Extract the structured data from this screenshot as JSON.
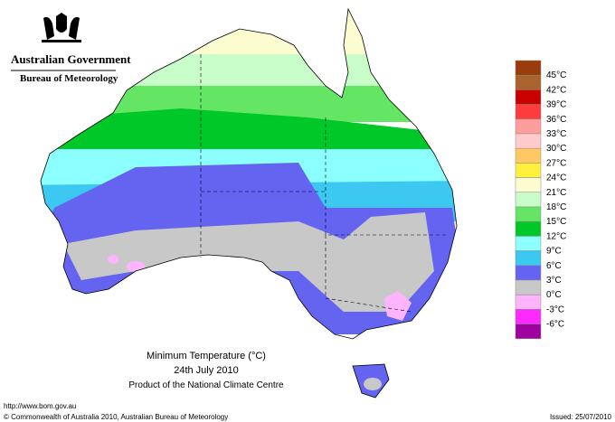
{
  "header": {
    "title": "Australian Government",
    "subtitle": "Bureau of Meteorology"
  },
  "map": {
    "title": "Minimum Temperature (°C)",
    "date": "24th July 2010",
    "product": "Product of the National Climate Centre"
  },
  "legend": {
    "items": [
      {
        "label": "45°C",
        "color": "#9c3c0c"
      },
      {
        "label": "42°C",
        "color": "#a8642c"
      },
      {
        "label": "39°C",
        "color": "#c80000"
      },
      {
        "label": "36°C",
        "color": "#ff3c3c"
      },
      {
        "label": "33°C",
        "color": "#ff9c9c"
      },
      {
        "label": "30°C",
        "color": "#ffcccc"
      },
      {
        "label": "27°C",
        "color": "#ffc864"
      },
      {
        "label": "24°C",
        "color": "#fff03c"
      },
      {
        "label": "21°C",
        "color": "#fcfcd0"
      },
      {
        "label": "18°C",
        "color": "#c8fcc8"
      },
      {
        "label": "15°C",
        "color": "#64e664"
      },
      {
        "label": "12°C",
        "color": "#00c828"
      },
      {
        "label": "9°C",
        "color": "#8cffff"
      },
      {
        "label": "6°C",
        "color": "#3cc8f0"
      },
      {
        "label": "3°C",
        "color": "#6464f0"
      },
      {
        "label": "0°C",
        "color": "#c8c8c8"
      },
      {
        "label": "-3°C",
        "color": "#ffb4ff"
      },
      {
        "label": "-6°C",
        "color": "#ff28ff"
      },
      {
        "label": "",
        "color": "#a000a0"
      }
    ]
  },
  "footer": {
    "url": "http://www.bom.gov.au",
    "copyright": "© Commonwealth of Australia 2010, Australian Bureau of Meteorology",
    "issued": "Issued: 25/07/2010"
  }
}
